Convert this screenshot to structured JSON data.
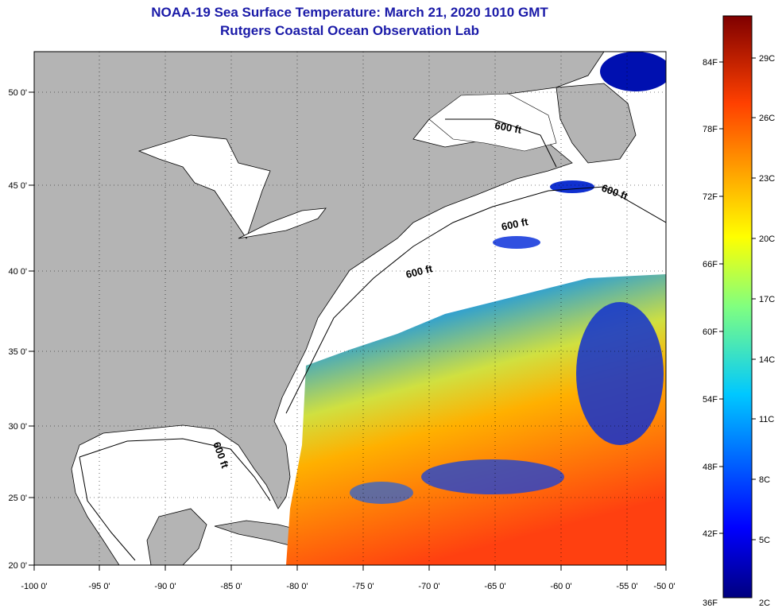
{
  "title": {
    "line1": "NOAA-19 Sea Surface Temperature:  March 21, 2020 1010 GMT",
    "line2": "Rutgers Coastal Ocean Observation Lab"
  },
  "axes": {
    "lon_ticks": [
      "-100 0'",
      "-95 0'",
      "-90 0'",
      "-85 0'",
      "-80 0'",
      "-75 0'",
      "-70 0'",
      "-65 0'",
      "-60 0'",
      "-55 0'",
      "-50 0'"
    ],
    "lat_ticks": [
      "50 0'",
      "45 0'",
      "40 0'",
      "35 0'",
      "30 0'",
      "25 0'",
      "20 0'"
    ]
  },
  "contour_label": "600 ft",
  "colorbar": {
    "fahrenheit": [
      "84F",
      "78F",
      "72F",
      "66F",
      "60F",
      "54F",
      "48F",
      "42F",
      "36F"
    ],
    "celsius": [
      "29C",
      "26C",
      "23C",
      "20C",
      "17C",
      "14C",
      "11C",
      "8C",
      "5C",
      "2C"
    ]
  },
  "colors": {
    "land": "#b4b4b4",
    "no_data": "#ffffff",
    "title": "#1a1aa8"
  }
}
